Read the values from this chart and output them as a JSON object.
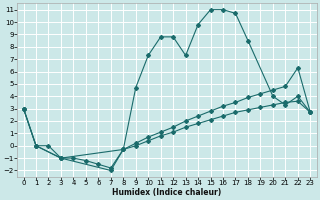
{
  "xlabel": "Humidex (Indice chaleur)",
  "bg_color": "#cce8e8",
  "grid_color": "#ffffff",
  "line_color": "#1a6b6b",
  "xlim": [
    -0.5,
    23.5
  ],
  "ylim": [
    -2.5,
    11.5
  ],
  "xticks": [
    0,
    1,
    2,
    3,
    4,
    5,
    6,
    7,
    8,
    9,
    10,
    11,
    12,
    13,
    14,
    15,
    16,
    17,
    18,
    19,
    20,
    21,
    22,
    23
  ],
  "yticks": [
    -2,
    -1,
    0,
    1,
    2,
    3,
    4,
    5,
    6,
    7,
    8,
    9,
    10,
    11
  ],
  "curve1_x": [
    0,
    1,
    3,
    8,
    9,
    10,
    11,
    12,
    13,
    14,
    15,
    16,
    17,
    18,
    20,
    21,
    22,
    23
  ],
  "curve1_y": [
    3,
    0,
    -1,
    -0.3,
    4.7,
    7.3,
    8.8,
    8.8,
    7.3,
    9.8,
    11.0,
    11.0,
    10.7,
    8.5,
    4.0,
    3.3,
    4.0,
    2.7
  ],
  "curve2_x": [
    0,
    1,
    3,
    7,
    8,
    9,
    10,
    11,
    12,
    13,
    14,
    15,
    16,
    17,
    18,
    19,
    20,
    21,
    22,
    23
  ],
  "curve2_y": [
    3,
    0,
    -1,
    -2.0,
    -0.3,
    0.2,
    0.7,
    1.1,
    1.5,
    2.0,
    2.4,
    2.8,
    3.2,
    3.5,
    3.9,
    4.2,
    4.5,
    4.8,
    6.3,
    2.7
  ],
  "curve3_x": [
    0,
    1,
    2,
    3,
    4,
    5,
    6,
    7,
    8,
    9,
    10,
    11,
    12,
    13,
    14,
    15,
    16,
    17,
    18,
    19,
    20,
    21,
    22,
    23
  ],
  "curve3_y": [
    3,
    0,
    0,
    -1,
    -1.0,
    -1.2,
    -1.5,
    -1.8,
    -0.3,
    0.0,
    0.4,
    0.8,
    1.1,
    1.5,
    1.8,
    2.1,
    2.4,
    2.7,
    2.9,
    3.1,
    3.3,
    3.5,
    3.6,
    2.7
  ]
}
